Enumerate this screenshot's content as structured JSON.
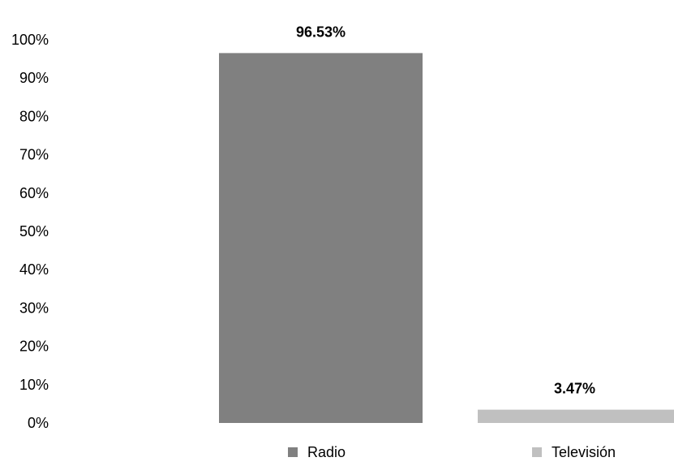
{
  "chart_data": {
    "type": "bar",
    "categories": [
      "Radio",
      "Televisión"
    ],
    "values": [
      96.53,
      3.47
    ],
    "data_labels": [
      "96.53%",
      "3.47%"
    ],
    "ylim": [
      0,
      100
    ],
    "yticks": [
      "0%",
      "10%",
      "20%",
      "30%",
      "40%",
      "50%",
      "60%",
      "70%",
      "80%",
      "90%",
      "100%"
    ],
    "colors": [
      "#808080",
      "#c0c0c0"
    ],
    "grid": false,
    "legend": {
      "placement": "bottom",
      "entries": [
        "Radio",
        "Televisión"
      ]
    }
  }
}
